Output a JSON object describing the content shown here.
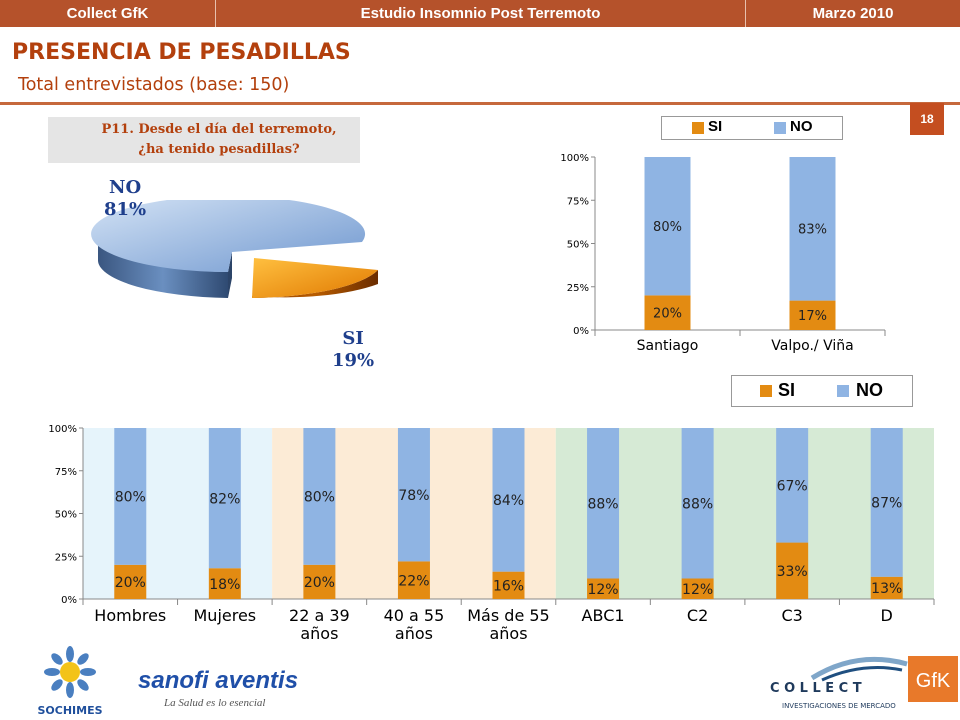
{
  "header": {
    "left": "Collect GfK",
    "center": "Estudio Insomnio Post Terremoto",
    "right": "Marzo 2010"
  },
  "title": "PRESENCIA DE PESADILLAS",
  "subtitle": "Total entrevistados (base: 150)",
  "page_number": "18",
  "question": {
    "line1": "P11.  Desde el día del terremoto,",
    "line2": "¿ha tenido pesadillas?"
  },
  "colors": {
    "si": "#e38b12",
    "no": "#8fb4e3",
    "header": "#b5522b",
    "accent": "#b3400d"
  },
  "legend": {
    "si": "SI",
    "no": "NO"
  },
  "logos": {
    "sochimes": "SOCHIMES",
    "sanofi": "sanofi aventis",
    "sanofi_tagline": "La Salud es lo esencial",
    "collect": "C O L L E C T",
    "collect_tagline": "INVESTIGACIONES DE MERCADO",
    "gfk": "GfK"
  },
  "chart_data": [
    {
      "type": "pie",
      "title": "",
      "slices": [
        {
          "name": "NO",
          "label": "NO",
          "pct_label": "81%",
          "value": 81
        },
        {
          "name": "SI",
          "label": "SI",
          "pct_label": "19%",
          "value": 19
        }
      ]
    },
    {
      "type": "bar",
      "stacked": true,
      "categories": [
        "Santiago",
        "Valpo./ Viña"
      ],
      "series": [
        {
          "name": "SI",
          "values": [
            20,
            17
          ],
          "labels": [
            "20%",
            "17%"
          ]
        },
        {
          "name": "NO",
          "values": [
            80,
            83
          ],
          "labels": [
            "80%",
            "83%"
          ]
        }
      ],
      "yticks": [
        "0%",
        "25%",
        "50%",
        "75%",
        "100%"
      ],
      "ylim": [
        0,
        100
      ],
      "legend": "top"
    },
    {
      "type": "bar",
      "stacked": true,
      "categories": [
        "Hombres",
        "Mujeres",
        "22 a 39 años",
        "40 a 55 años",
        "Más de 55 años",
        "ABC1",
        "C2",
        "C3",
        "D"
      ],
      "category_lines": [
        [
          "Hombres"
        ],
        [
          "Mujeres"
        ],
        [
          "22 a 39",
          "años"
        ],
        [
          "40 a 55",
          "años"
        ],
        [
          "Más de 55",
          "años"
        ],
        [
          "ABC1"
        ],
        [
          "C2"
        ],
        [
          "C3"
        ],
        [
          "D"
        ]
      ],
      "series": [
        {
          "name": "SI",
          "values": [
            20,
            18,
            20,
            22,
            16,
            12,
            12,
            33,
            13
          ],
          "labels": [
            "20%",
            "18%",
            "20%",
            "22%",
            "16%",
            "12%",
            "12%",
            "33%",
            "13%"
          ]
        },
        {
          "name": "NO",
          "values": [
            80,
            82,
            80,
            78,
            84,
            88,
            88,
            67,
            87
          ],
          "labels": [
            "80%",
            "82%",
            "80%",
            "78%",
            "84%",
            "88%",
            "88%",
            "67%",
            "87%"
          ]
        }
      ],
      "groups": [
        {
          "categories": [
            0,
            1
          ],
          "color": "#e6f4fb"
        },
        {
          "categories": [
            2,
            3,
            4
          ],
          "color": "#fcebd6"
        },
        {
          "categories": [
            5,
            6,
            7,
            8
          ],
          "color": "#d6ead5"
        }
      ],
      "yticks": [
        "0%",
        "25%",
        "50%",
        "75%",
        "100%"
      ],
      "ylim": [
        0,
        100
      ],
      "legend": "top-right"
    }
  ]
}
